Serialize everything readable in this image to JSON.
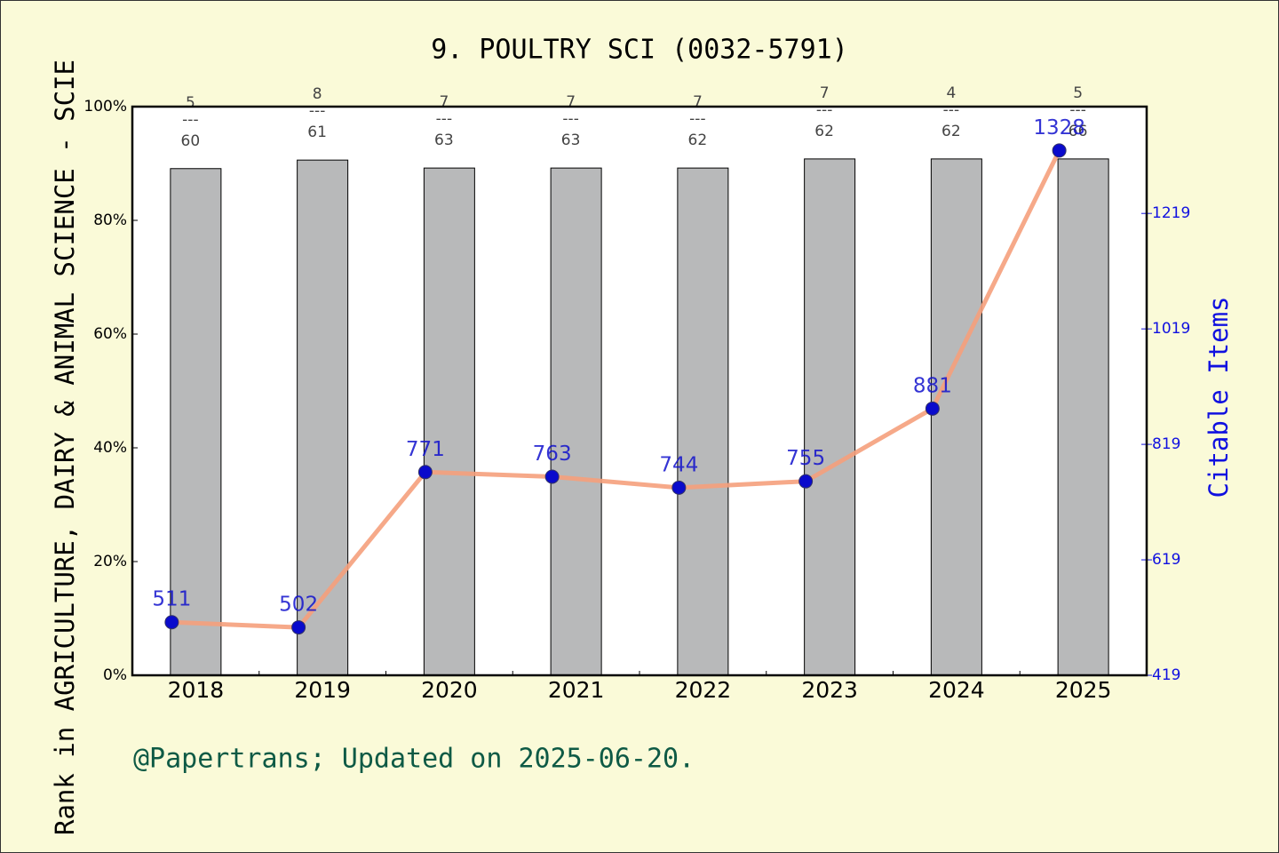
{
  "chart_data": {
    "type": "bar",
    "title": "9. POULTRY SCI (0032-5791)",
    "ylabel": "Rank in AGRICULTURE, DAIRY & ANIMAL SCIENCE - SCIE",
    "y2label": "Citable Items",
    "note": "@Papertrans; Updated on 2025-06-20.",
    "categories": [
      "2018",
      "2019",
      "2020",
      "2021",
      "2022",
      "2023",
      "2024",
      "2025"
    ],
    "ranks": [
      "5",
      "8",
      "7",
      "7",
      "7",
      "7",
      "4",
      "5"
    ],
    "totals": [
      "60",
      "61",
      "63",
      "63",
      "62",
      "62",
      "62",
      "66"
    ],
    "rank_separator": "---",
    "series": [
      {
        "type": "bar",
        "color": "#b8b9ba",
        "values": [
          89.1,
          90.6,
          89.2,
          89.2,
          89.2,
          90.8,
          90.8,
          90.8
        ]
      },
      {
        "type": "line",
        "axis": "y2",
        "color": "#f5a07c",
        "marker_color": "#0a0acc",
        "label_color": "#1010cc",
        "values": [
          511,
          502,
          771,
          763,
          744,
          755,
          881,
          1328
        ]
      }
    ],
    "ylim": [
      0,
      100
    ],
    "yticks": [
      {
        "value": 0,
        "label": "0%"
      },
      {
        "value": 20,
        "label": "20%"
      },
      {
        "value": 40,
        "label": "40%"
      },
      {
        "value": 60,
        "label": "60%"
      },
      {
        "value": 80,
        "label": "80%"
      },
      {
        "value": 100,
        "label": "100%"
      }
    ],
    "y2lim": [
      419,
      1404
    ],
    "y2ticks": [
      419,
      619,
      819,
      1019,
      1219
    ]
  }
}
